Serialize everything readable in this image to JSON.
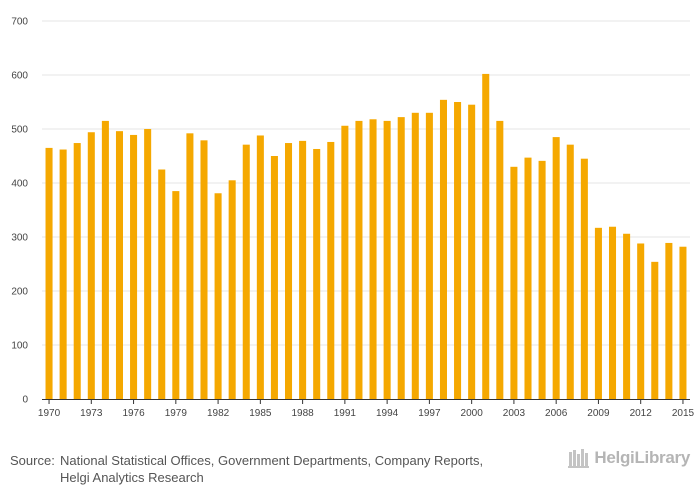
{
  "chart_data": {
    "type": "bar",
    "title": "",
    "xlabel": "",
    "ylabel": "",
    "ylim": [
      0,
      700
    ],
    "yticks": [
      0,
      100,
      200,
      300,
      400,
      500,
      600,
      700
    ],
    "grid": true,
    "bar_color": "#f5a800",
    "categories": [
      "1970",
      "1971",
      "1972",
      "1973",
      "1974",
      "1975",
      "1976",
      "1977",
      "1978",
      "1979",
      "1980",
      "1981",
      "1982",
      "1983",
      "1984",
      "1985",
      "1986",
      "1987",
      "1988",
      "1989",
      "1990",
      "1991",
      "1992",
      "1993",
      "1994",
      "1995",
      "1996",
      "1997",
      "1998",
      "1999",
      "2000",
      "2001",
      "2002",
      "2003",
      "2004",
      "2005",
      "2006",
      "2007",
      "2008",
      "2009",
      "2010",
      "2011",
      "2012",
      "2013",
      "2014",
      "2015"
    ],
    "values": [
      465,
      462,
      474,
      494,
      515,
      496,
      489,
      500,
      425,
      385,
      492,
      479,
      381,
      405,
      471,
      488,
      450,
      474,
      478,
      463,
      476,
      506,
      515,
      518,
      515,
      522,
      530,
      530,
      554,
      550,
      545,
      602,
      515,
      430,
      447,
      441,
      485,
      471,
      445,
      317,
      319,
      306,
      288,
      254,
      289,
      282
    ],
    "xtick_labels": [
      "1970",
      "1973",
      "1976",
      "1979",
      "1982",
      "1985",
      "1988",
      "1991",
      "1994",
      "1997",
      "2000",
      "2003",
      "2006",
      "2009",
      "2012",
      "2015"
    ]
  },
  "footer": {
    "source_label": "Source:",
    "source_line1": "National Statistical Offices, Government Departments, Company Reports,",
    "source_line2": "Helgi Analytics Research",
    "brand": "HelgiLibrary"
  }
}
